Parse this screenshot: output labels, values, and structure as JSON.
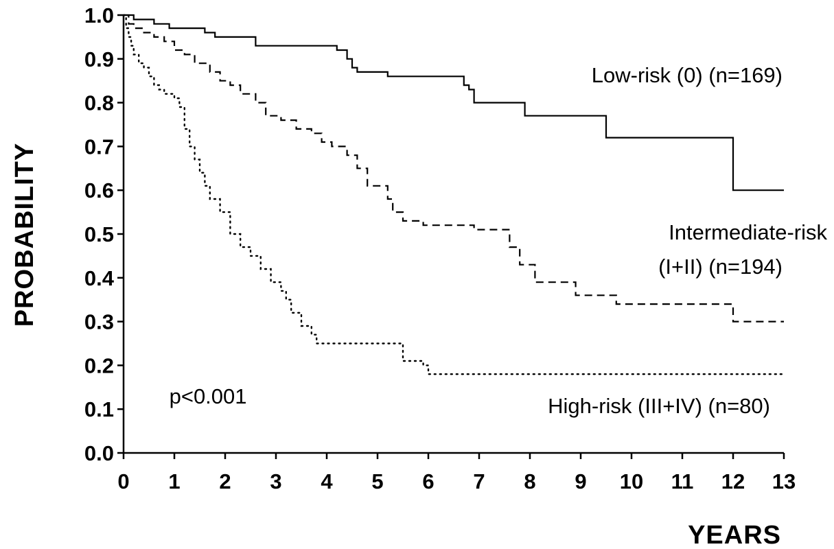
{
  "chart_data": {
    "type": "line",
    "xlabel": "YEARS",
    "ylabel": "PROBABILITY",
    "xlim": [
      0,
      13
    ],
    "ylim": [
      0,
      1
    ],
    "x_ticks": [
      "0",
      "1",
      "2",
      "3",
      "4",
      "5",
      "6",
      "7",
      "8",
      "9",
      "10",
      "11",
      "12",
      "13"
    ],
    "y_ticks": [
      "0.0",
      "0.1",
      "0.2",
      "0.3",
      "0.4",
      "0.5",
      "0.6",
      "0.7",
      "0.8",
      "0.9",
      "1.0"
    ],
    "grid": false,
    "legend": "none",
    "series": [
      {
        "label_lines": [
          "Low-risk (0)  (n=169)"
        ],
        "style": "solid",
        "x": [
          0,
          0.2,
          0.6,
          0.9,
          1.6,
          1.8,
          2.6,
          3.4,
          4.2,
          4.4,
          4.5,
          4.6,
          5.2,
          6.7,
          6.8,
          6.9,
          7.3,
          7.9,
          8.1,
          9.5,
          12.0,
          13.0
        ],
        "y": [
          1.0,
          0.99,
          0.98,
          0.97,
          0.96,
          0.95,
          0.93,
          0.93,
          0.92,
          0.9,
          0.88,
          0.87,
          0.86,
          0.84,
          0.83,
          0.8,
          0.8,
          0.77,
          0.77,
          0.72,
          0.6,
          0.6
        ]
      },
      {
        "label_lines": [
          "Intermediate-risk",
          "(I+II)  (n=194)"
        ],
        "style": "dashed",
        "x": [
          0,
          0.1,
          0.2,
          0.4,
          0.6,
          0.8,
          1.0,
          1.2,
          1.4,
          1.7,
          1.9,
          2.1,
          2.3,
          2.6,
          2.8,
          3.1,
          3.4,
          3.7,
          3.9,
          4.1,
          4.4,
          4.6,
          4.8,
          5.2,
          5.3,
          5.5,
          5.9,
          6.4,
          6.9,
          7.4,
          7.6,
          7.8,
          8.1,
          8.9,
          9.7,
          12.0,
          13.0
        ],
        "y": [
          1.0,
          0.98,
          0.97,
          0.96,
          0.95,
          0.94,
          0.92,
          0.91,
          0.89,
          0.87,
          0.85,
          0.84,
          0.82,
          0.8,
          0.77,
          0.76,
          0.74,
          0.73,
          0.71,
          0.7,
          0.68,
          0.65,
          0.61,
          0.58,
          0.55,
          0.53,
          0.52,
          0.52,
          0.51,
          0.51,
          0.47,
          0.43,
          0.39,
          0.36,
          0.34,
          0.3,
          0.3
        ]
      },
      {
        "label_lines": [
          "High-risk (III+IV)  (n=80)"
        ],
        "style": "dotted",
        "x": [
          0,
          0.05,
          0.1,
          0.15,
          0.2,
          0.3,
          0.4,
          0.5,
          0.6,
          0.7,
          0.8,
          1.0,
          1.1,
          1.2,
          1.3,
          1.4,
          1.5,
          1.6,
          1.7,
          1.9,
          2.1,
          2.3,
          2.5,
          2.7,
          2.9,
          3.1,
          3.2,
          3.3,
          3.5,
          3.7,
          3.8,
          4.0,
          5.4,
          5.5,
          5.9,
          6.0,
          13.0
        ],
        "y": [
          1.0,
          0.97,
          0.95,
          0.93,
          0.91,
          0.89,
          0.88,
          0.86,
          0.84,
          0.83,
          0.82,
          0.81,
          0.79,
          0.74,
          0.7,
          0.67,
          0.64,
          0.61,
          0.58,
          0.55,
          0.5,
          0.47,
          0.45,
          0.42,
          0.39,
          0.37,
          0.35,
          0.32,
          0.29,
          0.27,
          0.25,
          0.25,
          0.25,
          0.21,
          0.2,
          0.18,
          0.18
        ]
      }
    ],
    "annotations": [
      {
        "text": "p<0.001",
        "x": 0.9,
        "y": 0.13
      }
    ]
  }
}
